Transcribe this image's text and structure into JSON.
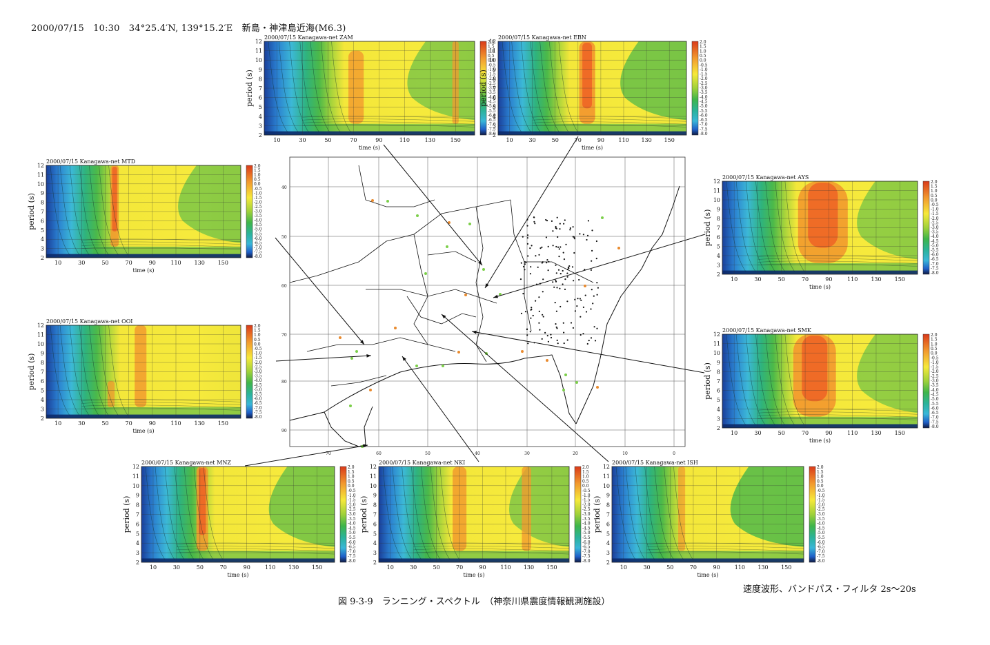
{
  "header": {
    "event_line": "2000/07/15　10:30　34°25.4′N, 139°15.2′E　新島・神津島近海(M6.3)"
  },
  "caption": "図 9-3-9　ランニング・スペクトル　（神奈川県震度情報観測施設）",
  "filter_note": "速度波形、バンドパス・フィルタ 2s〜20s",
  "colors": {
    "blue": "#1f5fc8",
    "cyan": "#39b6d8",
    "teal": "#2bb39a",
    "green": "#3fb54a",
    "light_green": "#a6d23a",
    "yellow": "#f6e93a",
    "orange": "#f29a2e",
    "red_orange": "#ee5a24",
    "map_dot_green": "#7ccf4a",
    "map_dot_orange": "#e98a2e"
  },
  "colorbar": {
    "tick_labels": [
      "2.0",
      "1.5",
      "1.0",
      "0.5",
      "0.0",
      "-0.5",
      "-1.0",
      "-1.5",
      "-2.0",
      "-2.5",
      "-3.0",
      "-3.5",
      "-4.0",
      "-4.5",
      "-5.0",
      "-5.5",
      "-6.0",
      "-6.5",
      "-7.0",
      "-7.5",
      "-8.0"
    ]
  },
  "map": {
    "lat_labels": [
      "40",
      "50",
      "60",
      "70",
      "80",
      "90"
    ],
    "lon_labels": [
      "70",
      "60",
      "50",
      "40",
      "30",
      "20",
      "10",
      "0"
    ]
  },
  "chart_data": [
    {
      "type": "heatmap",
      "station": "ZAM",
      "title": "2000/07/15  Kanagawa-net  ZAM",
      "xlabel": "time (s)",
      "ylabel": "period (s)",
      "x_ticks": [
        10,
        30,
        50,
        70,
        90,
        110,
        130,
        150
      ],
      "y_ticks": [
        2,
        3,
        4,
        5,
        6,
        7,
        8,
        9,
        10,
        11,
        12
      ],
      "xlim": [
        0,
        165
      ],
      "ylim": [
        2,
        12
      ],
      "clim": [
        -8.0,
        2.0
      ]
    },
    {
      "type": "heatmap",
      "station": "EBN",
      "title": "2000/07/15  Kanagawa-net  EBN",
      "xlabel": "time (s)",
      "ylabel": "period (s)",
      "x_ticks": [
        10,
        30,
        50,
        70,
        90,
        110,
        130,
        150
      ],
      "y_ticks": [
        2,
        3,
        4,
        5,
        6,
        7,
        8,
        9,
        10,
        11,
        12
      ],
      "xlim": [
        0,
        165
      ],
      "ylim": [
        2,
        12
      ],
      "clim": [
        -8.0,
        2.0
      ]
    },
    {
      "type": "heatmap",
      "station": "MTD",
      "title": "2000/07/15  Kanagawa-net  MTD",
      "xlabel": "time (s)",
      "ylabel": "period (s)",
      "x_ticks": [
        10,
        30,
        50,
        70,
        90,
        110,
        130,
        150
      ],
      "y_ticks": [
        2,
        3,
        4,
        5,
        6,
        7,
        8,
        9,
        10,
        11,
        12
      ],
      "xlim": [
        0,
        165
      ],
      "ylim": [
        2,
        12
      ],
      "clim": [
        -8.0,
        2.0
      ]
    },
    {
      "type": "heatmap",
      "station": "AYS",
      "title": "2000/07/15  Kanagawa-net  AYS",
      "xlabel": "time (s)",
      "ylabel": "period (s)",
      "x_ticks": [
        10,
        30,
        50,
        70,
        90,
        110,
        130,
        150
      ],
      "y_ticks": [
        2,
        3,
        4,
        5,
        6,
        7,
        8,
        9,
        10,
        11,
        12
      ],
      "xlim": [
        0,
        165
      ],
      "ylim": [
        2,
        12
      ],
      "clim": [
        -8.0,
        2.0
      ]
    },
    {
      "type": "heatmap",
      "station": "OOI",
      "title": "2000/07/15  Kanagawa-net  OOI",
      "xlabel": "time (s)",
      "ylabel": "period (s)",
      "x_ticks": [
        10,
        30,
        50,
        70,
        90,
        110,
        130,
        150
      ],
      "y_ticks": [
        2,
        3,
        4,
        5,
        6,
        7,
        8,
        9,
        10,
        11,
        12
      ],
      "xlim": [
        0,
        165
      ],
      "ylim": [
        2,
        12
      ],
      "clim": [
        -8.0,
        2.0
      ]
    },
    {
      "type": "heatmap",
      "station": "SMK",
      "title": "2000/07/15  Kanagawa-net  SMK",
      "xlabel": "time (s)",
      "ylabel": "period (s)",
      "x_ticks": [
        10,
        30,
        50,
        70,
        90,
        110,
        130,
        150
      ],
      "y_ticks": [
        2,
        3,
        4,
        5,
        6,
        7,
        8,
        9,
        10,
        11,
        12
      ],
      "xlim": [
        0,
        165
      ],
      "ylim": [
        2,
        12
      ],
      "clim": [
        -8.0,
        2.0
      ]
    },
    {
      "type": "heatmap",
      "station": "MNZ",
      "title": "2000/07/15  Kanagawa-net  MNZ",
      "xlabel": "time (s)",
      "ylabel": "period (s)",
      "x_ticks": [
        10,
        30,
        50,
        70,
        90,
        110,
        130,
        150
      ],
      "y_ticks": [
        2,
        3,
        4,
        5,
        6,
        7,
        8,
        9,
        10,
        11,
        12
      ],
      "xlim": [
        0,
        165
      ],
      "ylim": [
        2,
        12
      ],
      "clim": [
        -8.0,
        2.0
      ]
    },
    {
      "type": "heatmap",
      "station": "NKI",
      "title": "2000/07/15  Kanagawa-net  NKI",
      "xlabel": "time (s)",
      "ylabel": "period (s)",
      "x_ticks": [
        10,
        30,
        50,
        70,
        90,
        110,
        130,
        150
      ],
      "y_ticks": [
        2,
        3,
        4,
        5,
        6,
        7,
        8,
        9,
        10,
        11,
        12
      ],
      "xlim": [
        0,
        165
      ],
      "ylim": [
        2,
        12
      ],
      "clim": [
        -8.0,
        2.0
      ]
    },
    {
      "type": "heatmap",
      "station": "ISH",
      "title": "2000/07/15  Kanagawa-net  ISH",
      "xlabel": "time (s)",
      "ylabel": "period (s)",
      "x_ticks": [
        10,
        30,
        50,
        70,
        90,
        110,
        130,
        150
      ],
      "y_ticks": [
        2,
        3,
        4,
        5,
        6,
        7,
        8,
        9,
        10,
        11,
        12
      ],
      "xlim": [
        0,
        165
      ],
      "ylim": [
        2,
        12
      ],
      "clim": [
        -8.0,
        2.0
      ]
    }
  ]
}
